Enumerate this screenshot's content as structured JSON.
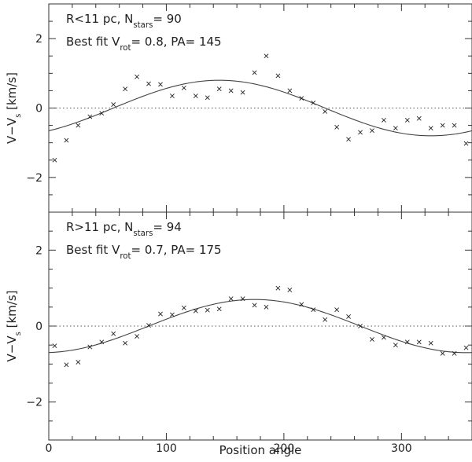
{
  "chart_data": [
    {
      "type": "scatter",
      "annotation_line1": {
        "prefix": "R<11 pc, N",
        "sub": "stars",
        "suffix": "= 90"
      },
      "annotation_line2": {
        "prefix": "Best fit V",
        "sub": "rot",
        "suffix": "= 0.8, PA= 145"
      },
      "ylabel": {
        "main": "V−V",
        "sub": "s",
        "unit": "[km/s]"
      },
      "xlim": [
        0,
        360
      ],
      "ylim": [
        -3,
        3
      ],
      "xticks": [
        "0",
        "100",
        "200",
        "300"
      ],
      "yticks": [
        "−2",
        "0",
        "2"
      ],
      "fit": {
        "amplitude": 0.8,
        "pa": 145
      },
      "x": [
        5,
        15,
        25,
        35,
        45,
        55,
        65,
        75,
        85,
        95,
        105,
        115,
        125,
        135,
        145,
        155,
        165,
        175,
        185,
        195,
        205,
        215,
        225,
        235,
        245,
        255,
        265,
        275,
        285,
        295,
        305,
        315,
        325,
        335,
        345,
        355
      ],
      "y": [
        -1.5,
        -0.93,
        -0.5,
        -0.25,
        -0.15,
        0.1,
        0.55,
        0.9,
        0.7,
        0.68,
        0.35,
        0.58,
        0.35,
        0.3,
        0.55,
        0.5,
        0.45,
        1.02,
        1.5,
        0.93,
        0.5,
        0.28,
        0.15,
        -0.1,
        -0.55,
        -0.9,
        -0.7,
        -0.65,
        -0.35,
        -0.58,
        -0.35,
        -0.3,
        -0.58,
        -0.5,
        -0.5,
        -1.02
      ]
    },
    {
      "type": "scatter",
      "annotation_line1": {
        "prefix": "R>11 pc, N",
        "sub": "stars",
        "suffix": "= 94"
      },
      "annotation_line2": {
        "prefix": "Best fit V",
        "sub": "rot",
        "suffix": "= 0.7, PA= 175"
      },
      "ylabel": {
        "main": "V−V",
        "sub": "s",
        "unit": "[km/s]"
      },
      "xlabel": "Position angle",
      "xlim": [
        0,
        360
      ],
      "ylim": [
        -3,
        3
      ],
      "xticks": [
        "0",
        "100",
        "200",
        "300"
      ],
      "yticks": [
        "−2",
        "0",
        "2"
      ],
      "fit": {
        "amplitude": 0.7,
        "pa": 175
      },
      "x": [
        5,
        15,
        25,
        35,
        45,
        55,
        65,
        75,
        85,
        95,
        105,
        115,
        125,
        135,
        145,
        155,
        165,
        175,
        185,
        195,
        205,
        215,
        225,
        235,
        245,
        255,
        265,
        275,
        285,
        295,
        305,
        315,
        325,
        335,
        345,
        355
      ],
      "y": [
        -0.52,
        -1.02,
        -0.95,
        -0.55,
        -0.42,
        -0.2,
        -0.45,
        -0.27,
        0.02,
        0.32,
        0.3,
        0.48,
        0.4,
        0.42,
        0.45,
        0.72,
        0.72,
        0.55,
        0.5,
        1.0,
        0.95,
        0.57,
        0.43,
        0.17,
        0.43,
        0.25,
        0.0,
        -0.35,
        -0.3,
        -0.5,
        -0.42,
        -0.42,
        -0.45,
        -0.72,
        -0.72,
        -0.57
      ]
    }
  ]
}
